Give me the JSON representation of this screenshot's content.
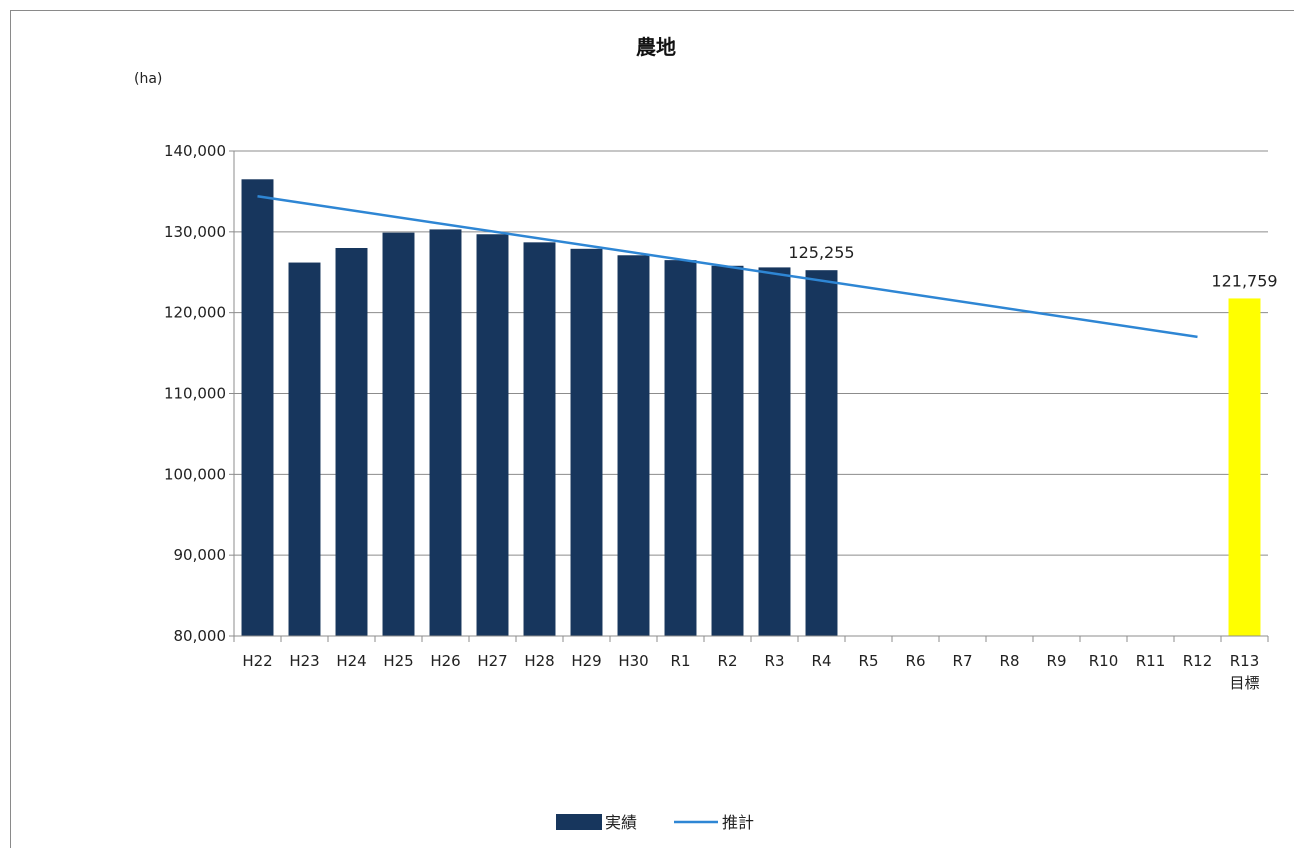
{
  "chart_data": {
    "type": "bar",
    "title": "農地",
    "unit_label": "(ha)",
    "xlabel": "",
    "ylabel": "",
    "ylim": [
      80000,
      140000
    ],
    "y_ticks": [
      80000,
      90000,
      100000,
      110000,
      120000,
      130000,
      140000
    ],
    "y_tick_labels": [
      "80,000",
      "90,000",
      "100,000",
      "110,000",
      "120,000",
      "130,000",
      "140,000"
    ],
    "grid": true,
    "legend_position": "bottom",
    "categories": [
      {
        "label": "H22",
        "sublabel": ""
      },
      {
        "label": "H23",
        "sublabel": ""
      },
      {
        "label": "H24",
        "sublabel": ""
      },
      {
        "label": "H25",
        "sublabel": ""
      },
      {
        "label": "H26",
        "sublabel": ""
      },
      {
        "label": "H27",
        "sublabel": ""
      },
      {
        "label": "H28",
        "sublabel": ""
      },
      {
        "label": "H29",
        "sublabel": ""
      },
      {
        "label": "H30",
        "sublabel": ""
      },
      {
        "label": "R1",
        "sublabel": ""
      },
      {
        "label": "R2",
        "sublabel": ""
      },
      {
        "label": "R3",
        "sublabel": ""
      },
      {
        "label": "R4",
        "sublabel": ""
      },
      {
        "label": "R5",
        "sublabel": ""
      },
      {
        "label": "R6",
        "sublabel": ""
      },
      {
        "label": "R7",
        "sublabel": ""
      },
      {
        "label": "R8",
        "sublabel": ""
      },
      {
        "label": "R9",
        "sublabel": ""
      },
      {
        "label": "R10",
        "sublabel": ""
      },
      {
        "label": "R11",
        "sublabel": ""
      },
      {
        "label": "R12",
        "sublabel": ""
      },
      {
        "label": "R13",
        "sublabel": "目標"
      }
    ],
    "series": [
      {
        "name": "実績",
        "type": "bar",
        "color": "#17365d",
        "values": [
          136500,
          126200,
          128000,
          129900,
          130300,
          129700,
          128700,
          127900,
          127100,
          126500,
          125800,
          125600,
          125255,
          null,
          null,
          null,
          null,
          null,
          null,
          null,
          null,
          null
        ]
      },
      {
        "name": "",
        "type": "bar",
        "color": "#ffff00",
        "values": [
          null,
          null,
          null,
          null,
          null,
          null,
          null,
          null,
          null,
          null,
          null,
          null,
          null,
          null,
          null,
          null,
          null,
          null,
          null,
          null,
          null,
          121759
        ]
      },
      {
        "name": "推計",
        "type": "line",
        "color": "#2e86d4",
        "start": {
          "category_index": 0,
          "value": 134400
        },
        "end": {
          "category_index": 20,
          "value": 117000
        }
      }
    ],
    "data_labels": [
      {
        "category_index": 12,
        "value": 125255,
        "text": "125,255"
      },
      {
        "category_index": 21,
        "value": 121759,
        "text": "121,759"
      }
    ]
  }
}
